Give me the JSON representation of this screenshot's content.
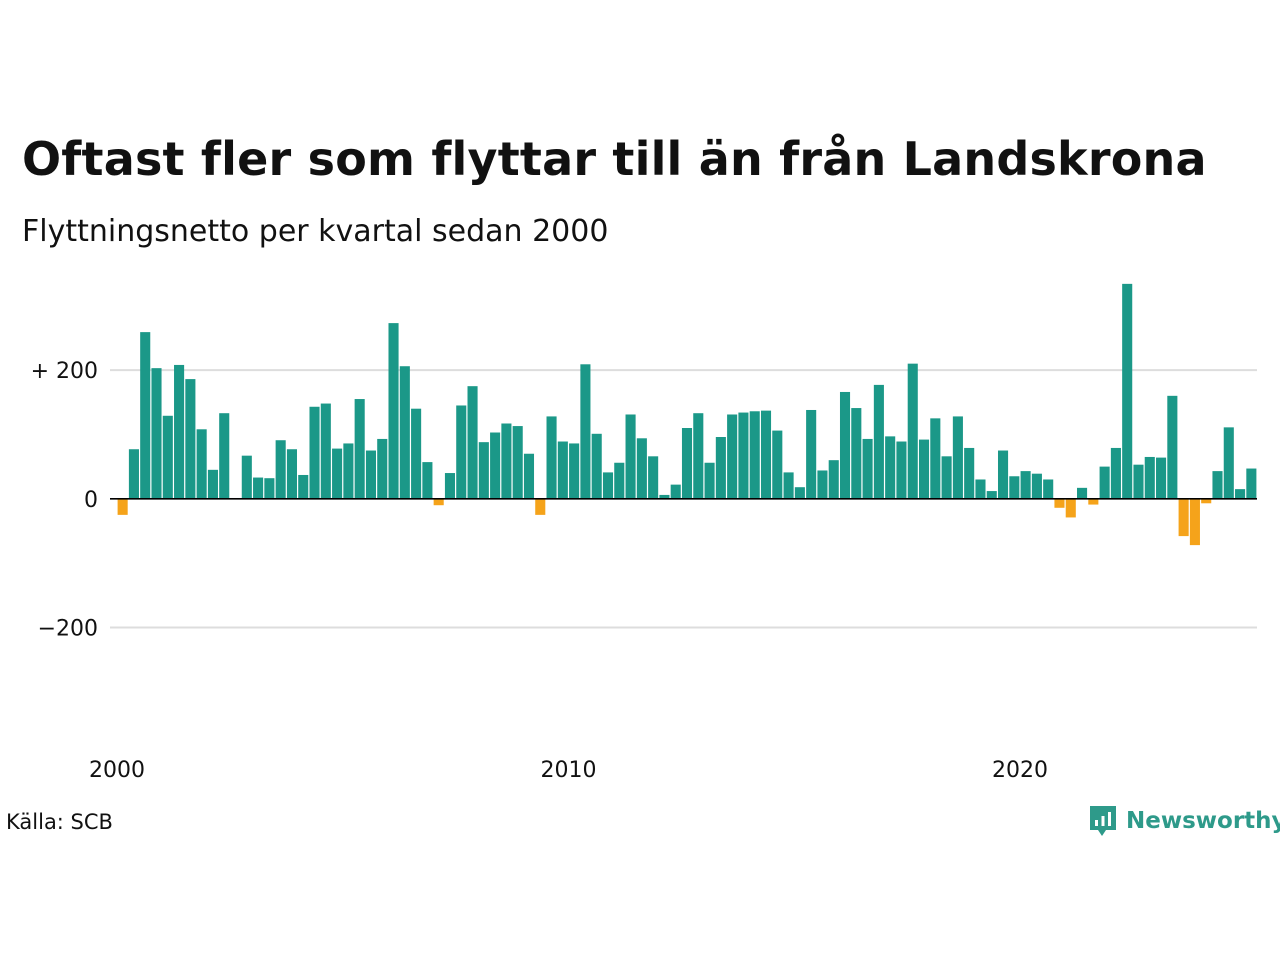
{
  "colors": {
    "positive": "#1b9888",
    "negative": "#f5a31a",
    "grid": "#dddddd",
    "zero": "#000000",
    "brand": "#2e9a8a"
  },
  "source": "Källa: SCB",
  "brand": {
    "name": "Newsworthy",
    "icon": "chart-bubble-icon"
  },
  "chart_data": {
    "type": "bar",
    "title": "Oftast fler som flyttar till än från Landskrona",
    "subtitle": "Flyttningsnetto per kvartal sedan 2000",
    "xlabel": "",
    "ylabel": "",
    "ylim": [
      -350,
      340
    ],
    "yticks": [
      {
        "value": 200,
        "label": "+ 200"
      },
      {
        "value": 0,
        "label": "0"
      },
      {
        "value": -200,
        "label": "−200"
      }
    ],
    "xticks": [
      {
        "value": 2000,
        "label": "2000"
      },
      {
        "value": 2010,
        "label": "2010"
      },
      {
        "value": 2020,
        "label": "2020"
      }
    ],
    "grid": true,
    "start_year": 2000,
    "values": [
      -25,
      77,
      259,
      203,
      129,
      208,
      186,
      108,
      45,
      133,
      1,
      67,
      33,
      32,
      91,
      77,
      37,
      143,
      148,
      78,
      86,
      155,
      75,
      93,
      273,
      206,
      140,
      57,
      -10,
      40,
      145,
      175,
      88,
      103,
      117,
      113,
      70,
      -25,
      128,
      89,
      86,
      209,
      101,
      41,
      56,
      131,
      94,
      66,
      6,
      22,
      110,
      133,
      56,
      96,
      131,
      134,
      136,
      137,
      106,
      41,
      18,
      138,
      44,
      60,
      166,
      141,
      93,
      177,
      97,
      89,
      210,
      92,
      125,
      66,
      128,
      79,
      30,
      12,
      75,
      35,
      43,
      39,
      30,
      -14,
      -29,
      17,
      -9,
      50,
      79,
      334,
      53,
      65,
      64,
      160,
      -58,
      -72,
      -7,
      43,
      111,
      15,
      47
    ]
  }
}
